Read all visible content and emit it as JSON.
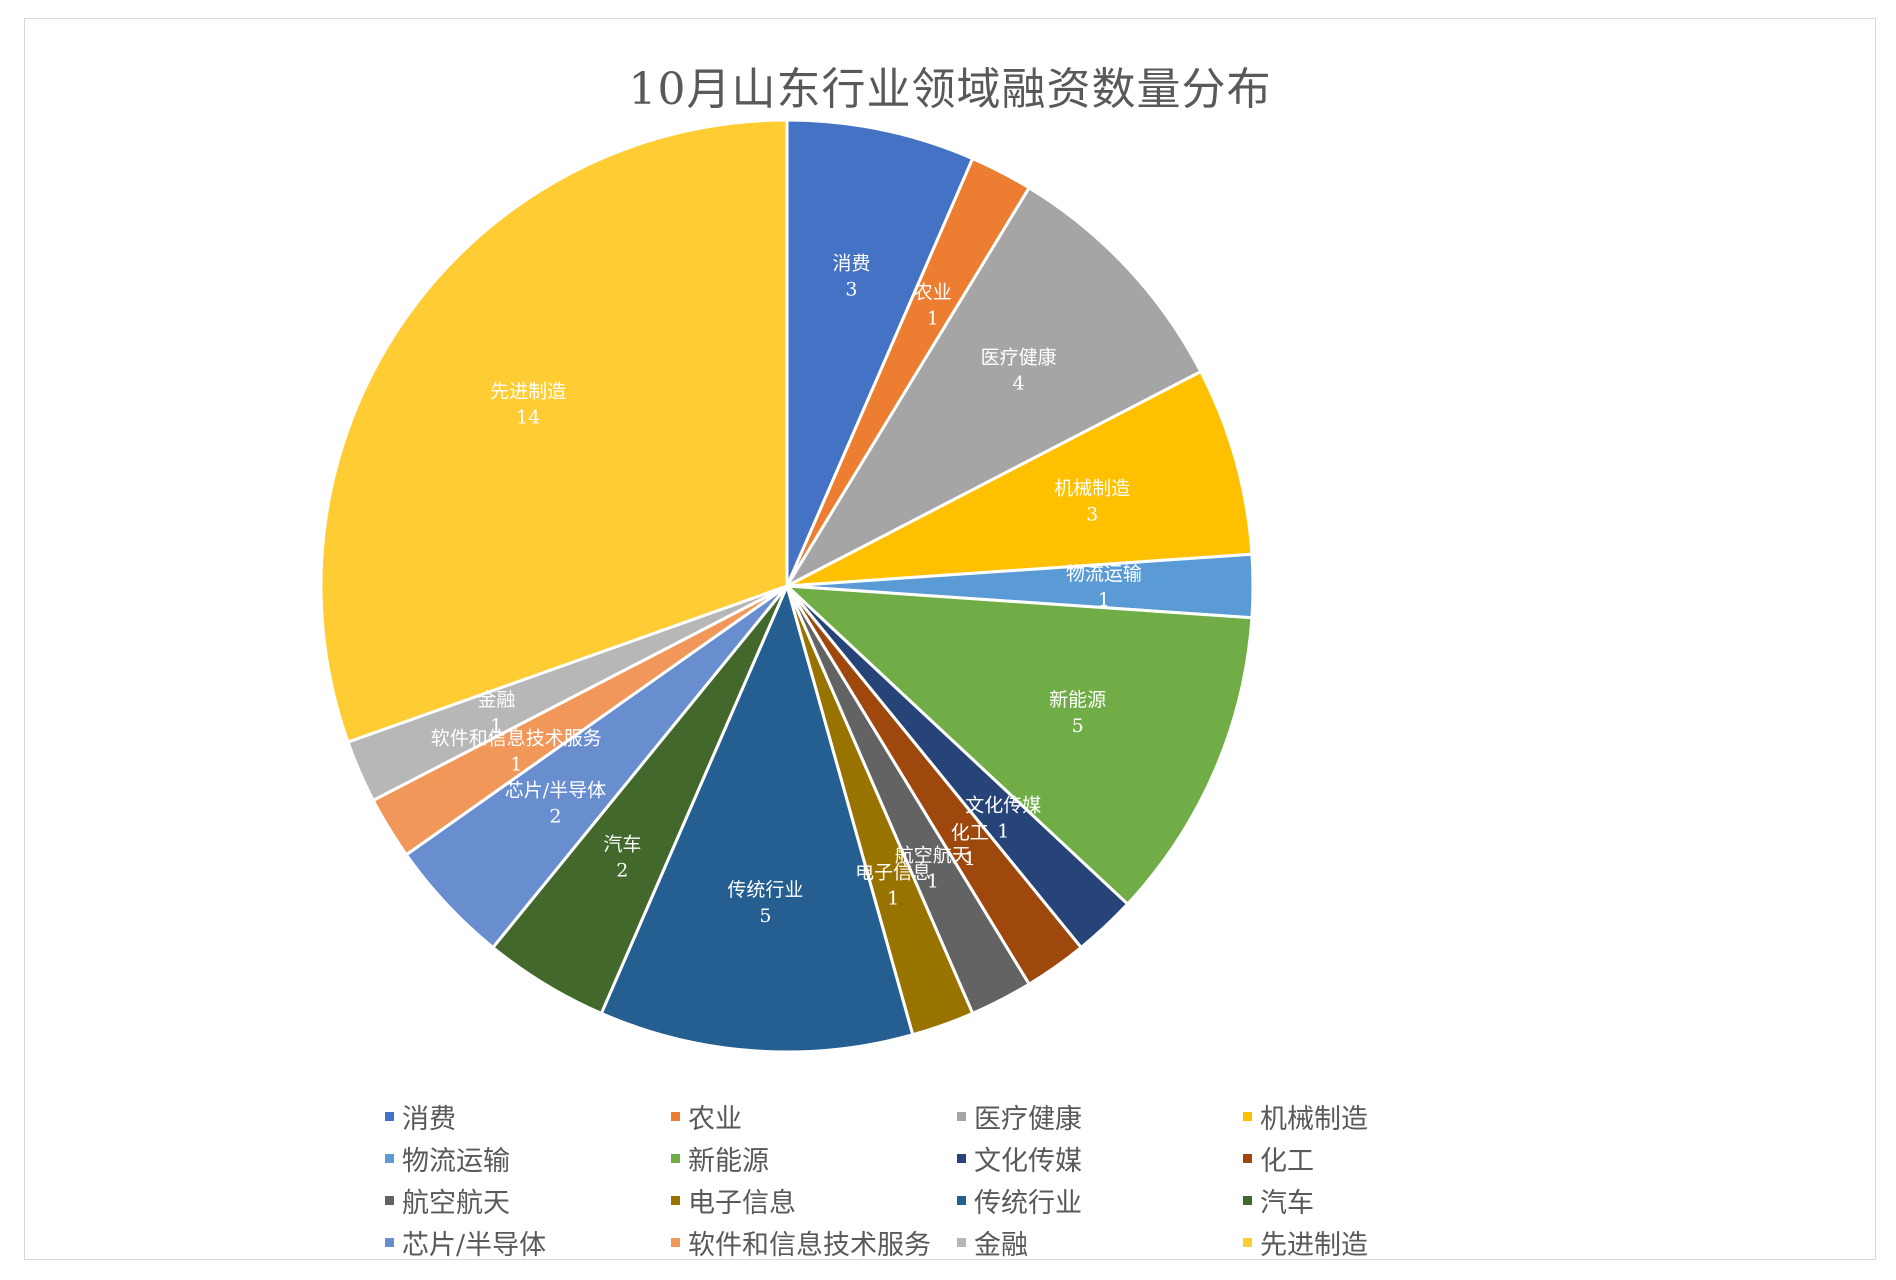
{
  "chart_data": {
    "type": "pie",
    "title": "10月山东行业领域融资数量分布",
    "legend_position": "bottom",
    "slices": [
      {
        "label": "消费",
        "value": 3,
        "color": "#4472C4"
      },
      {
        "label": "农业",
        "value": 1,
        "color": "#ED7D31"
      },
      {
        "label": "医疗健康",
        "value": 4,
        "color": "#A5A5A5"
      },
      {
        "label": "机械制造",
        "value": 3,
        "color": "#FFC000"
      },
      {
        "label": "物流运输",
        "value": 1,
        "color": "#5B9BD5"
      },
      {
        "label": "新能源",
        "value": 5,
        "color": "#70AD47"
      },
      {
        "label": "文化传媒",
        "value": 1,
        "color": "#264478"
      },
      {
        "label": "化工",
        "value": 1,
        "color": "#9E480E"
      },
      {
        "label": "航空航天",
        "value": 1,
        "color": "#636363"
      },
      {
        "label": "电子信息",
        "value": 1,
        "color": "#997300"
      },
      {
        "label": "传统行业",
        "value": 5,
        "color": "#255E91"
      },
      {
        "label": "汽车",
        "value": 2,
        "color": "#43682B"
      },
      {
        "label": "芯片/半导体",
        "value": 2,
        "color": "#698ED0"
      },
      {
        "label": "软件和信息技术服务",
        "value": 1,
        "color": "#F1975A"
      },
      {
        "label": "金融",
        "value": 1,
        "color": "#B7B7B7"
      },
      {
        "label": "先进制造",
        "value": 14,
        "color": "#FFCD33"
      }
    ]
  }
}
